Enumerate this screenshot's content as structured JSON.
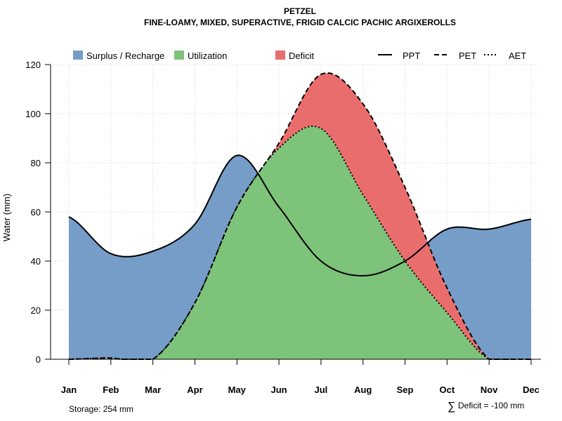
{
  "chart_data": {
    "type": "area",
    "title": "PETZEL",
    "subtitle": "FINE-LOAMY, MIXED, SUPERACTIVE, FRIGID CALCIC PACHIC ARGIXEROLLS",
    "xlabel": "",
    "ylabel": "Water (mm)",
    "ylim": [
      0,
      120
    ],
    "yticks": [
      0,
      20,
      40,
      60,
      80,
      100,
      120
    ],
    "grid": true,
    "categories": [
      "Jan",
      "Feb",
      "Mar",
      "Apr",
      "May",
      "Jun",
      "Jul",
      "Aug",
      "Sep",
      "Oct",
      "Nov",
      "Dec"
    ],
    "series": [
      {
        "name": "PPT",
        "style": "solid",
        "values": [
          58,
          43,
          44,
          55,
          83,
          62,
          40,
          34,
          40,
          53,
          53,
          57
        ]
      },
      {
        "name": "PET",
        "style": "dashed",
        "values": [
          0,
          0.5,
          0,
          23,
          62,
          88,
          116,
          104,
          70,
          29,
          0,
          0
        ]
      },
      {
        "name": "AET",
        "style": "dotted",
        "values": [
          0,
          0.5,
          0,
          23,
          62,
          86,
          94,
          67,
          40,
          19,
          0,
          0
        ]
      }
    ],
    "areas": [
      {
        "name": "Surplus / Recharge",
        "color": "#759DC8"
      },
      {
        "name": "Utilization",
        "color": "#7DC37A"
      },
      {
        "name": "Deficit",
        "color": "#EA6D6D"
      }
    ],
    "legend_placement": "top",
    "annotations": {
      "storage": "Storage: 254 mm",
      "deficit": "Deficit = -100 mm",
      "deficit_symbol": "∑"
    }
  }
}
